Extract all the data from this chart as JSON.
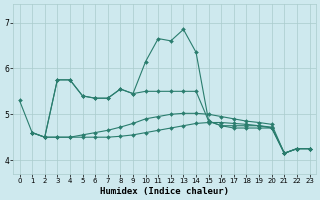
{
  "xlabel": "Humidex (Indice chaleur)",
  "background_color": "#cee9ee",
  "grid_color": "#aacccc",
  "line_color": "#2a7d6e",
  "xlim": [
    -0.5,
    23.5
  ],
  "ylim": [
    3.7,
    7.4
  ],
  "xticks": [
    0,
    1,
    2,
    3,
    4,
    5,
    6,
    7,
    8,
    9,
    10,
    11,
    12,
    13,
    14,
    15,
    16,
    17,
    18,
    19,
    20,
    21,
    22,
    23
  ],
  "yticks": [
    4,
    5,
    6,
    7
  ],
  "series": [
    {
      "x": [
        0,
        1,
        2,
        3,
        4,
        5,
        6,
        7,
        8,
        9,
        10,
        11,
        12,
        13,
        14,
        15,
        16,
        17,
        18,
        19,
        20,
        21,
        22,
        23
      ],
      "y": [
        5.3,
        4.6,
        4.5,
        5.75,
        5.75,
        5.4,
        5.35,
        5.35,
        5.55,
        5.45,
        6.15,
        6.65,
        6.6,
        6.85,
        6.35,
        4.85,
        4.75,
        4.75,
        4.75,
        4.75,
        4.7,
        4.15,
        4.25,
        4.25
      ]
    },
    {
      "x": [
        1,
        2,
        3,
        4,
        5,
        6,
        7,
        8,
        9,
        10,
        11,
        12,
        13,
        14,
        15,
        16,
        17,
        18,
        19,
        20,
        21,
        22,
        23
      ],
      "y": [
        4.6,
        4.5,
        4.5,
        4.5,
        4.5,
        4.5,
        4.5,
        4.52,
        4.55,
        4.6,
        4.65,
        4.7,
        4.75,
        4.8,
        4.82,
        4.82,
        4.8,
        4.78,
        4.75,
        4.72,
        4.15,
        4.25,
        4.25
      ]
    },
    {
      "x": [
        1,
        2,
        3,
        4,
        5,
        6,
        7,
        8,
        9,
        10,
        11,
        12,
        13,
        14,
        15,
        16,
        17,
        18,
        19,
        20,
        21,
        22,
        23
      ],
      "y": [
        4.6,
        4.5,
        4.5,
        4.5,
        4.55,
        4.6,
        4.65,
        4.72,
        4.8,
        4.9,
        4.95,
        5.0,
        5.02,
        5.02,
        5.0,
        4.95,
        4.9,
        4.85,
        4.82,
        4.78,
        4.15,
        4.25,
        4.25
      ]
    },
    {
      "x": [
        2,
        3,
        4,
        5,
        6,
        7,
        8,
        9,
        10,
        11,
        12,
        13,
        14,
        15,
        16,
        17,
        18,
        19,
        20,
        21,
        22,
        23
      ],
      "y": [
        4.5,
        5.75,
        5.75,
        5.4,
        5.35,
        5.35,
        5.55,
        5.45,
        5.5,
        5.5,
        5.5,
        5.5,
        5.5,
        4.85,
        4.75,
        4.7,
        4.7,
        4.7,
        4.7,
        4.15,
        4.25,
        4.25
      ]
    }
  ]
}
